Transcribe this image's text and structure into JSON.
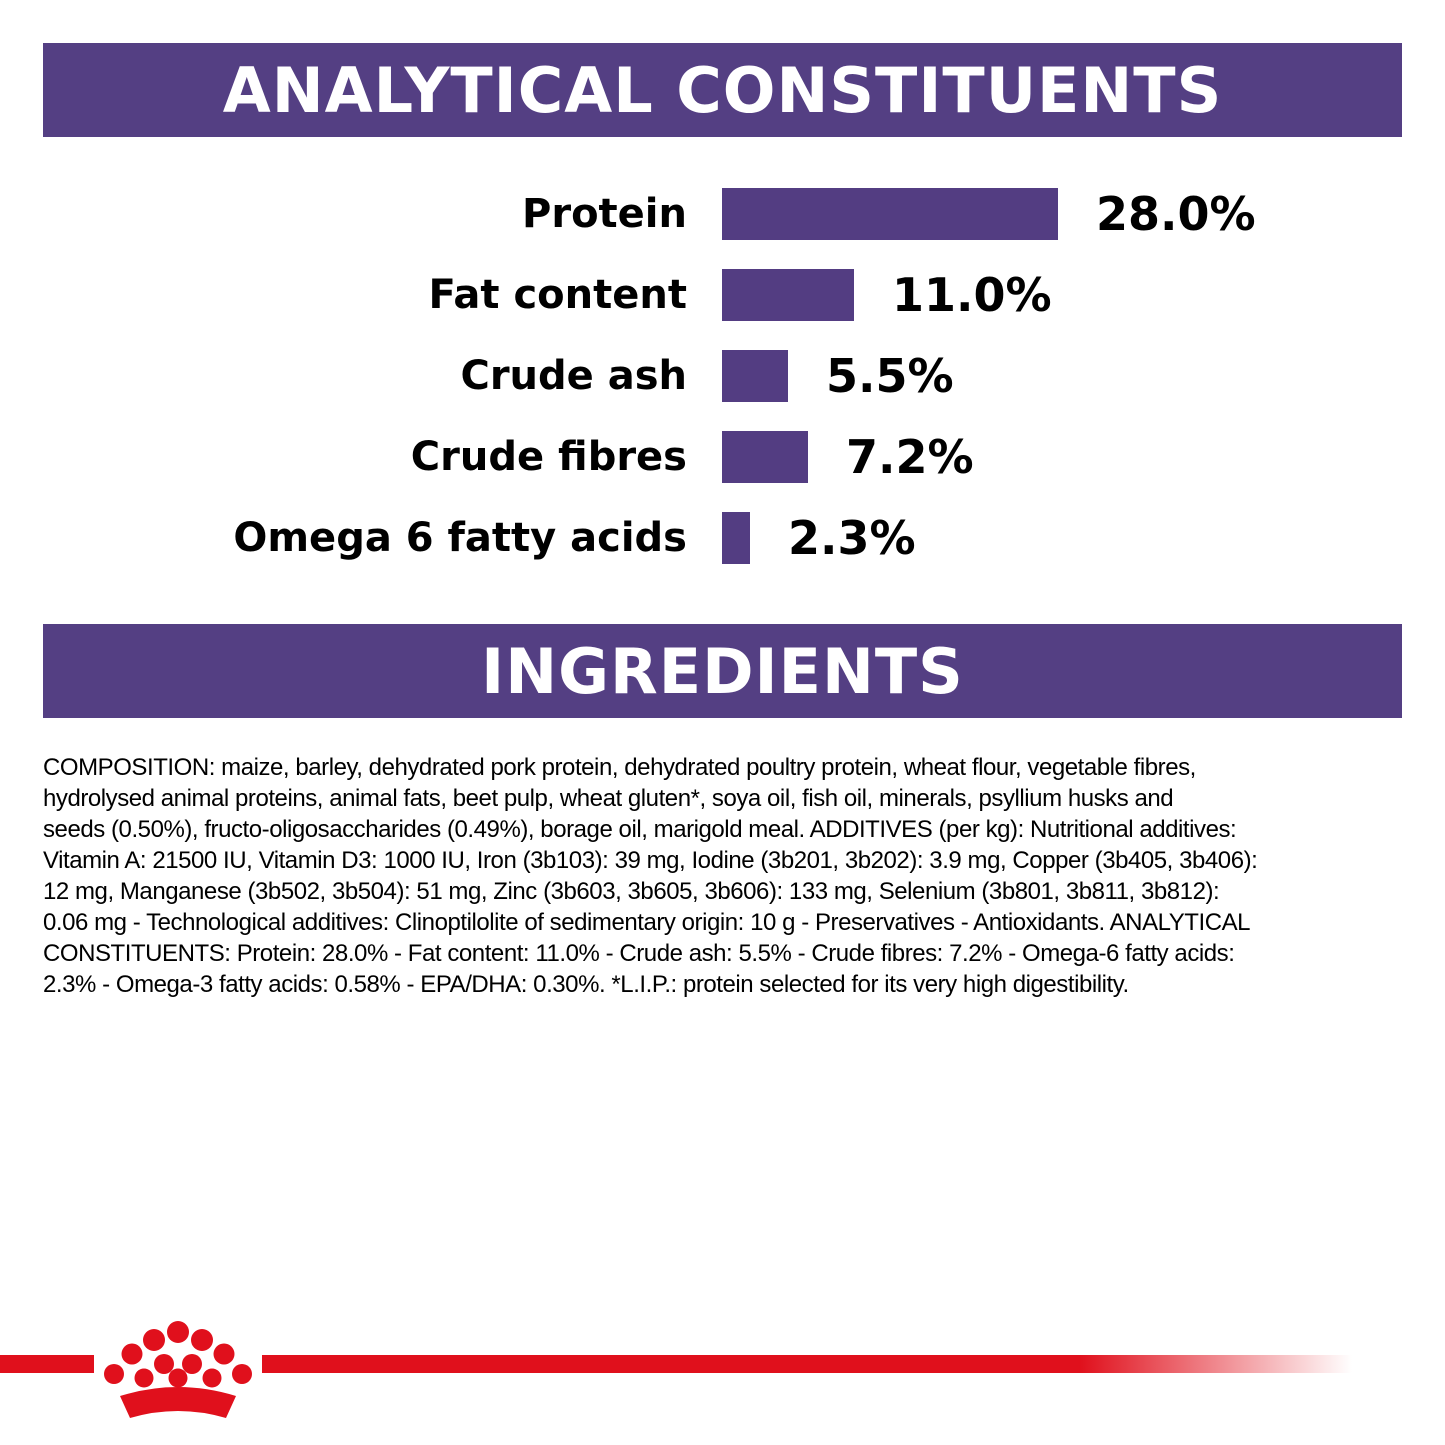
{
  "colors": {
    "brand_purple": "#543f83",
    "bar_purple": "#533d82",
    "brand_red": "#e0101c"
  },
  "analytical": {
    "title": "ANALYTICAL CONSTITUENTS",
    "rows": [
      {
        "label": "Protein",
        "value": "28.0%",
        "percent": 28.0
      },
      {
        "label": "Fat content",
        "value": "11.0%",
        "percent": 11.0
      },
      {
        "label": "Crude ash",
        "value": "5.5%",
        "percent": 5.5
      },
      {
        "label": "Crude fibres",
        "value": "7.2%",
        "percent": 7.2
      },
      {
        "label": "Omega 6 fatty acids",
        "value": "2.3%",
        "percent": 2.3
      }
    ]
  },
  "ingredients": {
    "title": "INGREDIENTS",
    "composition_lines": [
      "COMPOSITION: maize, barley, dehydrated pork protein, dehydrated poultry protein, wheat flour, vegetable fibres,",
      "hydrolysed animal proteins, animal fats, beet pulp, wheat gluten*, soya oil, fish oil, minerals, psyllium husks and",
      "seeds (0.50%), fructo-oligosaccharides (0.49%), borage oil, marigold meal. ADDITIVES (per kg): Nutritional additives:",
      "Vitamin A: 21500 IU, Vitamin D3: 1000 IU, Iron (3b103): 39 mg, Iodine (3b201, 3b202): 3.9 mg, Copper (3b405, 3b406):",
      "12 mg, Manganese (3b502, 3b504): 51 mg, Zinc (3b603, 3b605, 3b606): 133 mg, Selenium (3b801, 3b811, 3b812):",
      "0.06 mg - Technological additives: Clinoptilolite of sedimentary origin: 10 g - Preservatives - Antioxidants. ANALYTICAL",
      "CONSTITUENTS: Protein: 28.0% - Fat content: 11.0% - Crude ash: 5.5% - Crude fibres: 7.2% - Omega-6 fatty acids:",
      "2.3% - Omega-3 fatty acids: 0.58% - EPA/DHA: 0.30%. *L.I.P.: protein selected for its very high digestibility."
    ]
  },
  "footer": {
    "logo_icon": "crown-logo-icon"
  }
}
